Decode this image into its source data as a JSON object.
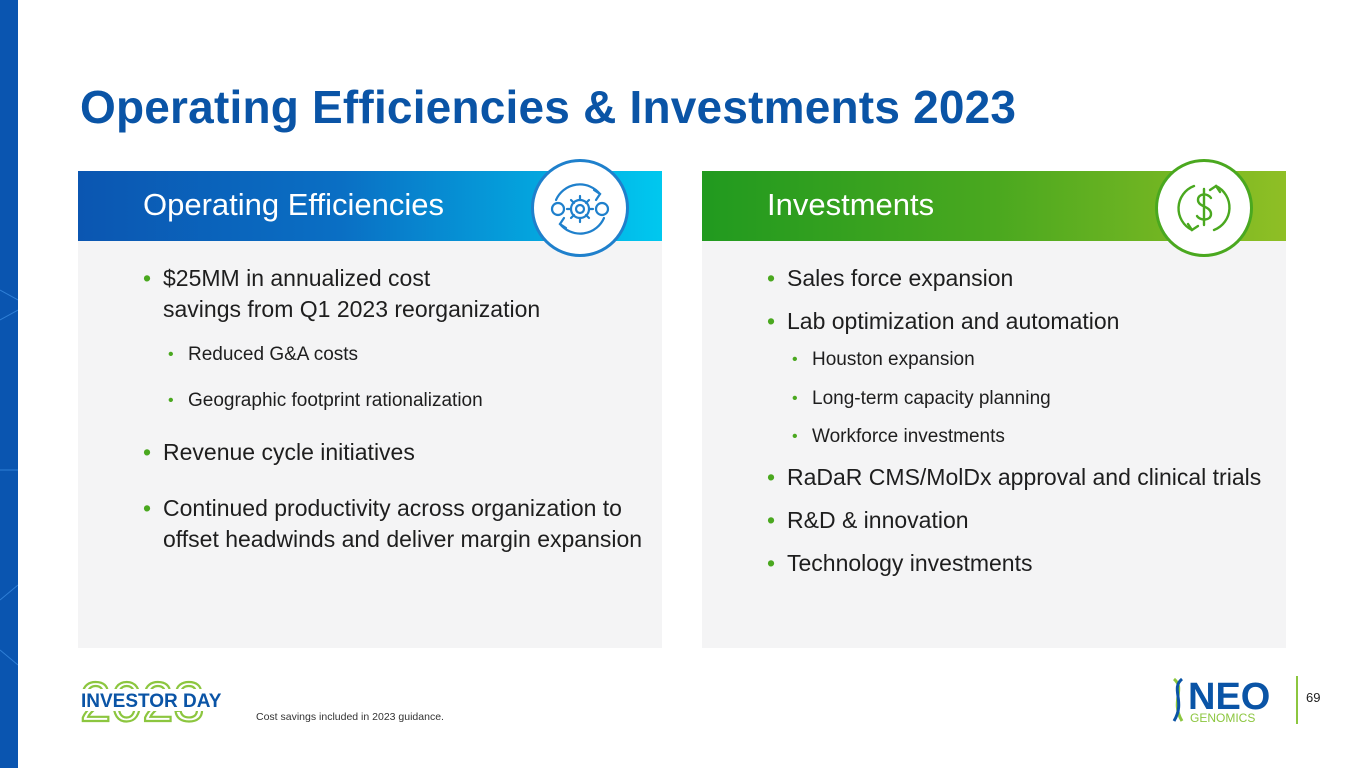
{
  "title": "Operating Efficiencies & Investments 2023",
  "panels": {
    "left": {
      "header": "Operating Efficiencies",
      "icon": "gears-cycle-icon",
      "bullets": [
        {
          "text_line1": "$25MM in annualized cost",
          "text_line2": "savings from Q1 2023 reorganization"
        },
        {
          "sub": "Reduced G&A costs"
        },
        {
          "sub": "Geographic footprint rationalization"
        },
        {
          "text": "Revenue cycle initiatives"
        },
        {
          "text": "Continued productivity across organization to offset headwinds and deliver margin expansion"
        }
      ]
    },
    "right": {
      "header": "Investments",
      "icon": "dollar-cycle-icon",
      "items": {
        "b1": "Sales force expansion",
        "b2": "Lab optimization and automation",
        "s1": "Houston expansion",
        "s2": "Long-term capacity planning",
        "s3": "Workforce investments",
        "b3": "RaDaR CMS/MolDx approval and clinical trials",
        "b4": "R&D & innovation",
        "b5": "Technology investments"
      }
    }
  },
  "footer": {
    "footnote": "Cost savings included in 2023 guidance.",
    "event_logo": {
      "year": "2023",
      "label": "INVESTOR DAY"
    },
    "company_logo": {
      "name": "NEO",
      "sub": "GENOMICS"
    },
    "page_number": "69"
  },
  "colors": {
    "title_blue": "#0a54a6",
    "accent_green": "#4aa81f",
    "accent_cyan": "#00c8ef"
  }
}
